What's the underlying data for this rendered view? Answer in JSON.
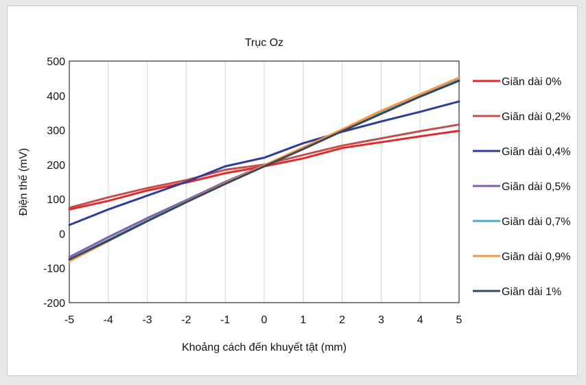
{
  "chart_data": {
    "type": "line",
    "title": "Trục Oz",
    "xlabel": "Khoảng cách đến khuyết tật (mm)",
    "ylabel": "Điện thế (mV)",
    "xlim": [
      -5,
      5
    ],
    "ylim": [
      -200,
      500
    ],
    "xticks": [
      -5,
      -4,
      -3,
      -2,
      -1,
      0,
      1,
      2,
      3,
      4,
      5
    ],
    "yticks": [
      -200,
      -100,
      0,
      100,
      200,
      300,
      400,
      500
    ],
    "grid": "vertical",
    "legend_position": "right",
    "x": [
      -5,
      -4,
      -3,
      -2,
      -1,
      0,
      1,
      2,
      3,
      4,
      5
    ],
    "series": [
      {
        "name": "Giãn dài 0%",
        "color": "#e8262a",
        "values": [
          70,
          95,
          125,
          148,
          175,
          195,
          218,
          248,
          265,
          282,
          298
        ]
      },
      {
        "name": "Giãn dài 0,2%",
        "color": "#c0504d",
        "values": [
          75,
          105,
          132,
          155,
          185,
          200,
          228,
          255,
          276,
          297,
          316
        ]
      },
      {
        "name": "Giãn dài 0,4%",
        "color": "#2e3d98",
        "values": [
          25,
          70,
          110,
          150,
          195,
          220,
          262,
          295,
          325,
          353,
          383
        ]
      },
      {
        "name": "Giãn dài 0,5%",
        "color": "#7f5fad",
        "values": [
          -68,
          -10,
          45,
          97,
          150,
          198,
          248,
          300,
          352,
          400,
          450
        ]
      },
      {
        "name": "Giãn dài 0,7%",
        "color": "#4bacc6",
        "values": [
          -75,
          -18,
          38,
          93,
          145,
          195,
          248,
          300,
          350,
          400,
          448
        ]
      },
      {
        "name": "Giãn dài 0,9%",
        "color": "#f79646",
        "values": [
          -80,
          -22,
          36,
          92,
          146,
          198,
          250,
          302,
          356,
          404,
          452
        ]
      },
      {
        "name": "Giãn dài 1%",
        "color": "#34495e",
        "values": [
          -75,
          -20,
          36,
          91,
          144,
          195,
          245,
          297,
          347,
          397,
          443
        ]
      }
    ]
  }
}
